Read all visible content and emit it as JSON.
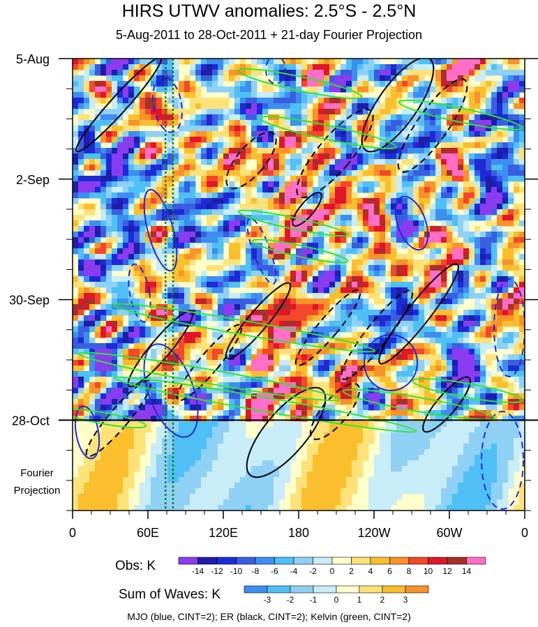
{
  "chart_data": {
    "type": "heatmap",
    "title": "HIRS UTWV anomalies: 2.5°S - 2.5°N",
    "subtitle": "5-Aug-2011 to 28-Oct-2011 + 21-day Fourier Projection",
    "x_ticks": [
      {
        "label": "0",
        "lon": 0
      },
      {
        "label": "60E",
        "lon": 60
      },
      {
        "label": "120E",
        "lon": 120
      },
      {
        "label": "180",
        "lon": 180
      },
      {
        "label": "120W",
        "lon": 240
      },
      {
        "label": "60W",
        "lon": 300
      },
      {
        "label": "0",
        "lon": 360
      }
    ],
    "xlim": [
      0,
      360
    ],
    "y_ticks": [
      {
        "label": "5-Aug",
        "day": 0
      },
      {
        "label": "2-Sep",
        "day": 28
      },
      {
        "label": "30-Sep",
        "day": 56
      },
      {
        "label": "28-Oct",
        "day": 84
      }
    ],
    "ylim_days": [
      0,
      105
    ],
    "projection_start_day": 84,
    "projection_label_line1": "Fourier",
    "projection_label_line2": "Projection",
    "dotted_lines_lon": [
      74,
      80
    ],
    "obs_colorbar": {
      "label": "Obs: K",
      "ticks": [
        "-14",
        "-12",
        "-10",
        "-8",
        "-6",
        "-4",
        "-2",
        "0",
        "2",
        "4",
        "6",
        "8",
        "10",
        "12",
        "14"
      ],
      "colors": [
        "#8a3cf0",
        "#1e1ea8",
        "#1e2ad8",
        "#3a5ee0",
        "#3d8ef0",
        "#4fc0f5",
        "#8fd0f5",
        "#c8ecf8",
        "#ffffcc",
        "#fde27a",
        "#fbbf2d",
        "#f9922a",
        "#f2492a",
        "#e0162a",
        "#a8302c",
        "#ff6ec7"
      ]
    },
    "waves_colorbar": {
      "label": "Sum of Waves: K",
      "ticks": [
        "-3",
        "-2",
        "-1",
        "0",
        "1",
        "2",
        "3"
      ],
      "colors": [
        "#3d8ef0",
        "#4fc0f5",
        "#8fd0f5",
        "#c8ecf8",
        "#ffffcc",
        "#fde27a",
        "#fbbf2d",
        "#f9922a"
      ]
    },
    "legend": "MJO (blue, CINT=2); ER (black, CINT=2); Kelvin (green, CINT=2)",
    "series_colors": {
      "mjo": "#1e2ad8",
      "er": "#000000",
      "kelvin": "#2ee82e"
    }
  }
}
